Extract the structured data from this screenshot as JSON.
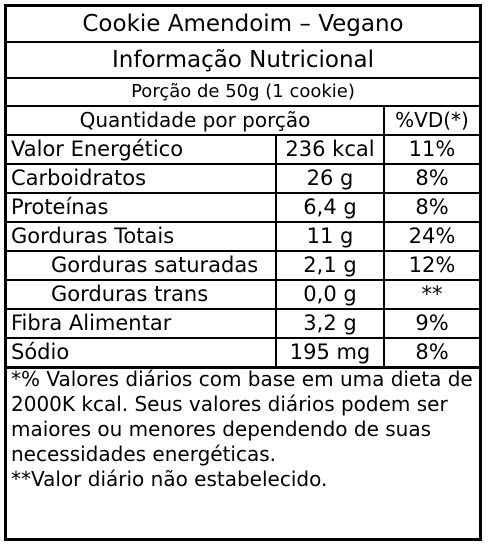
{
  "label": {
    "product_title": "Cookie Amendoim – Vegano",
    "heading": "Informação Nutricional",
    "serving": "Porção de 50g (1 cookie)",
    "columns": {
      "quantity": "Quantidade por porção",
      "daily_value": "%VD(*)"
    },
    "rows": [
      {
        "name": "Valor Energético",
        "amount": "236 kcal",
        "dv": "11%"
      },
      {
        "name": "Carboidratos",
        "amount": "26 g",
        "dv": "8%"
      },
      {
        "name": "Proteínas",
        "amount": "6,4 g",
        "dv": "8%"
      },
      {
        "name": "Gorduras Totais",
        "amount": "11 g",
        "dv": "24%"
      },
      {
        "name": "Gorduras saturadas",
        "amount": "2,1 g",
        "dv": "12%"
      },
      {
        "name": "Gorduras trans",
        "amount": "0,0 g",
        "dv": "**"
      },
      {
        "name": "Fibra Alimentar",
        "amount": "3,2 g",
        "dv": "9%"
      },
      {
        "name": "Sódio",
        "amount": "195 mg",
        "dv": "8%"
      }
    ],
    "footnotes": [
      "*% Valores diários com base em uma dieta de 2000K kcal. Seus valores diários podem ser maiores ou menores dependendo de suas necessidades energéticas.",
      "**Valor diário não estabelecido."
    ]
  }
}
